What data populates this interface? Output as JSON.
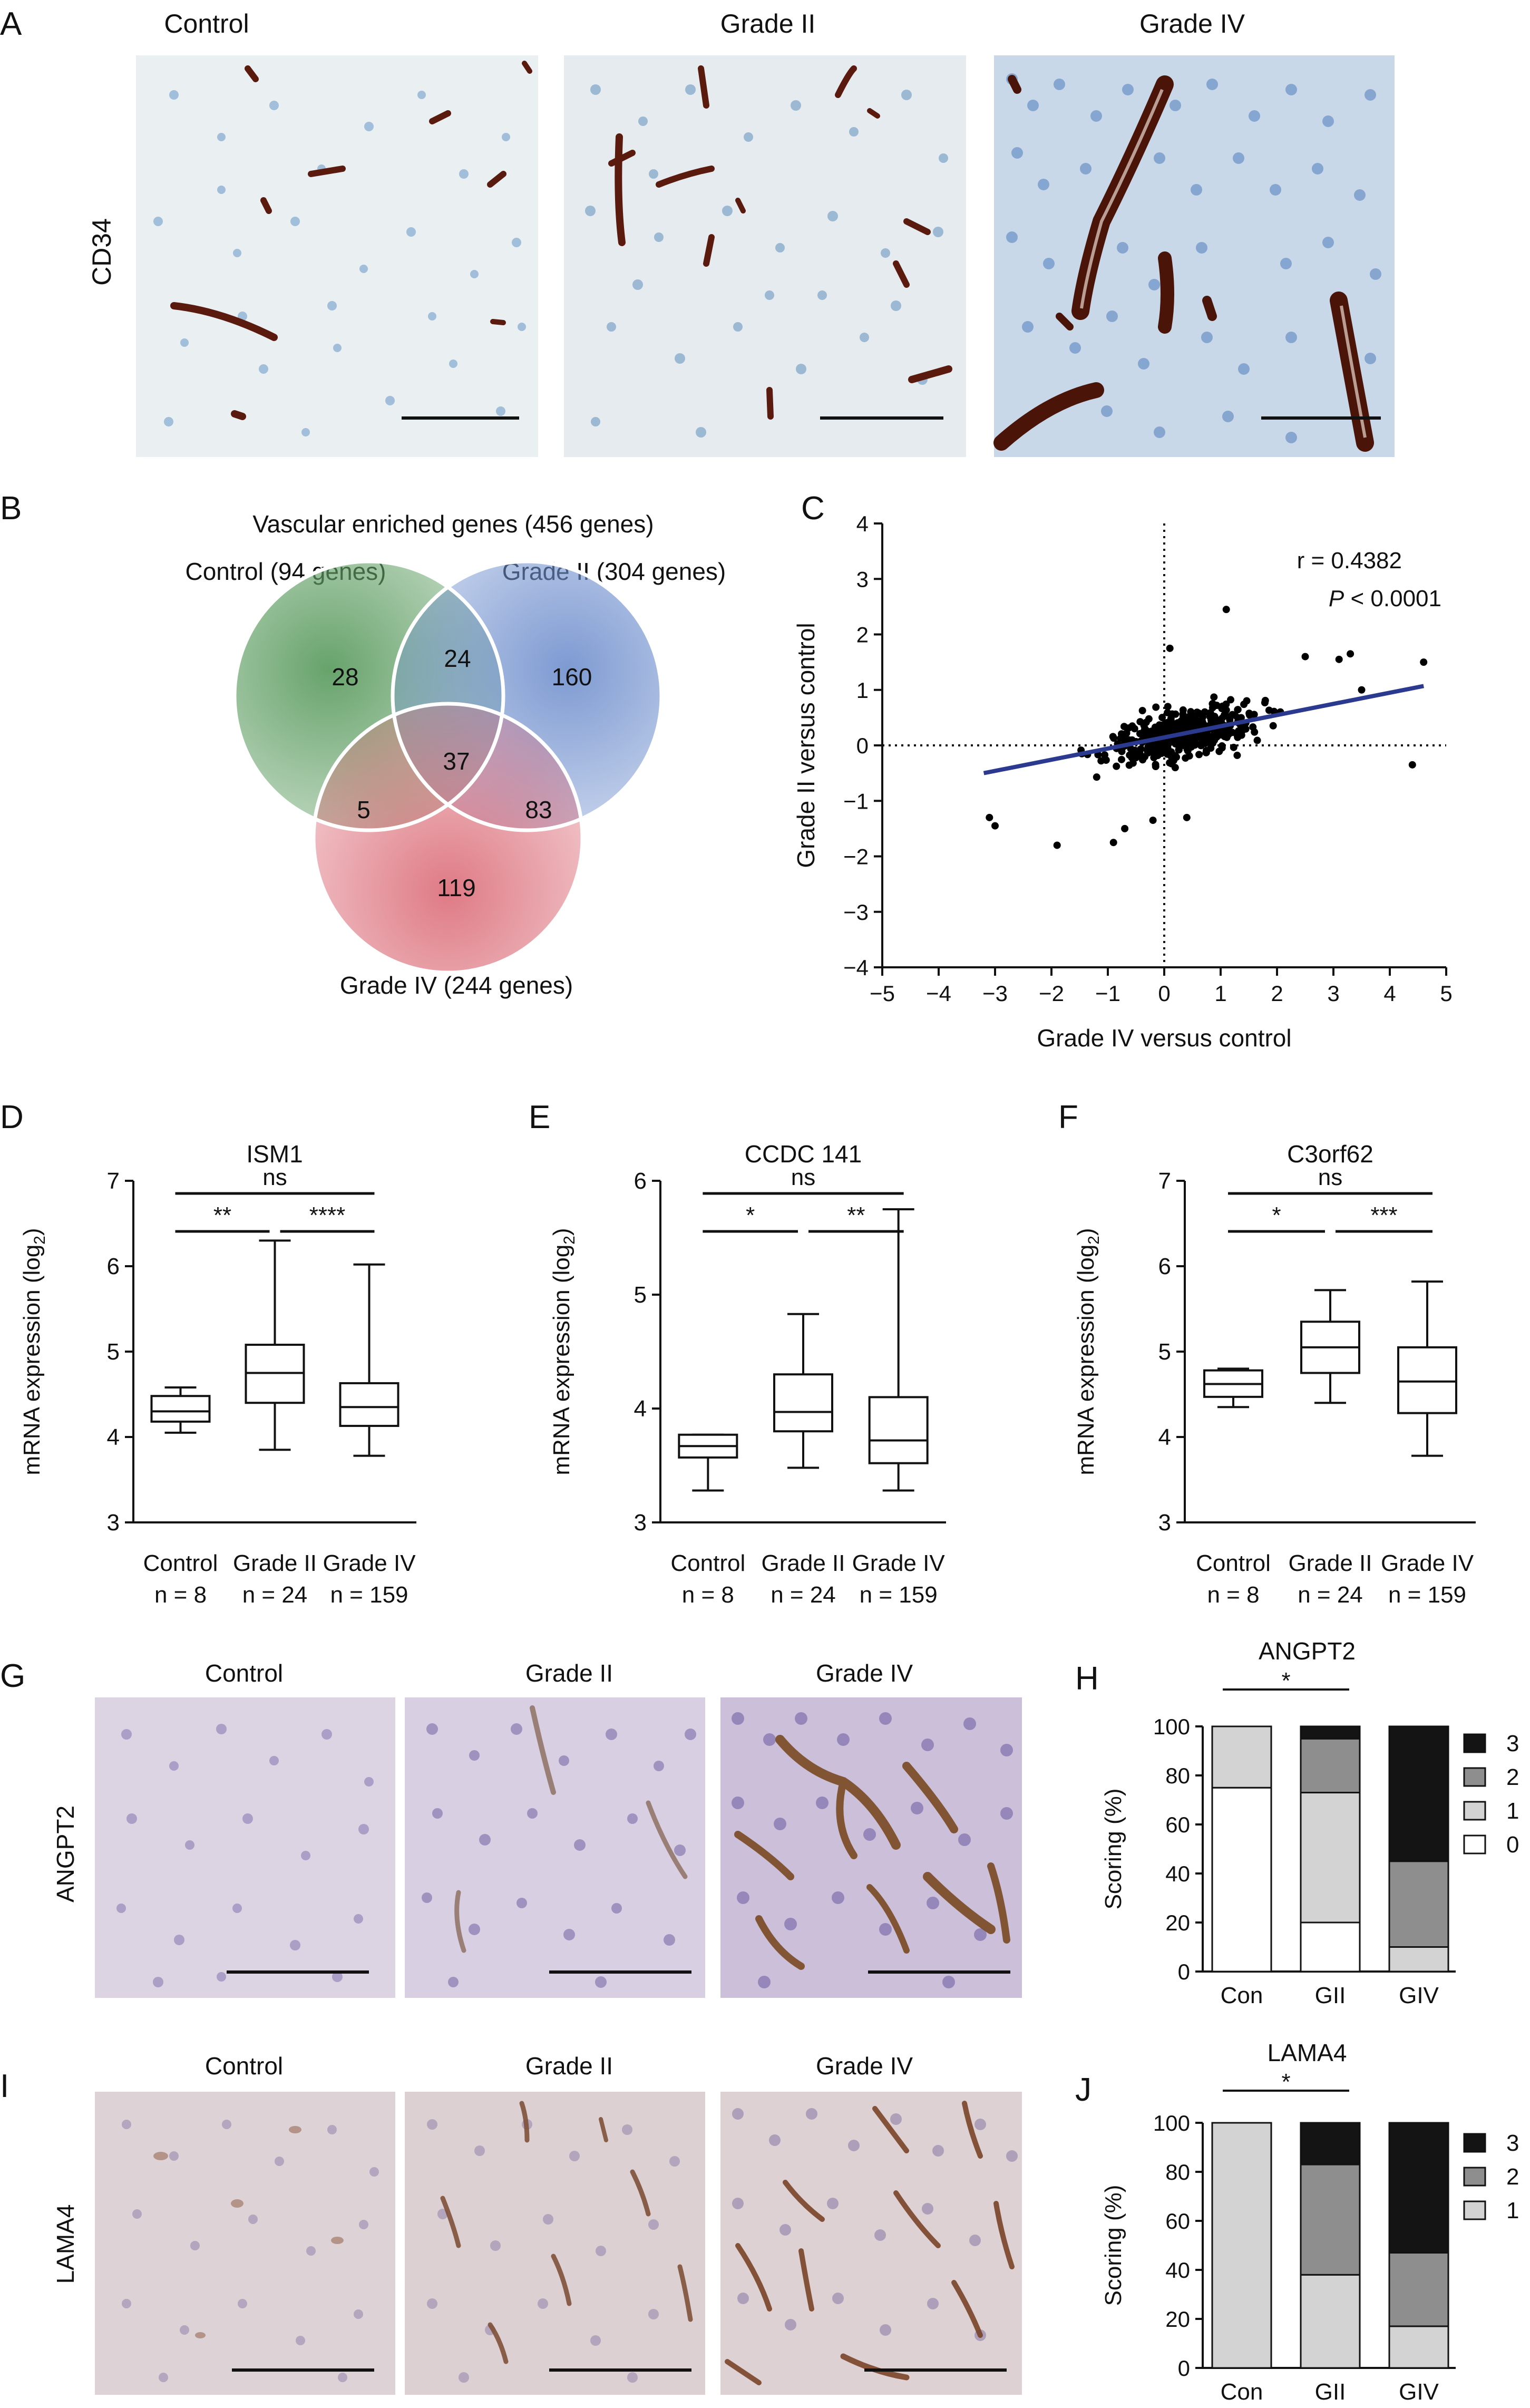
{
  "panel_labels": {
    "A": "A",
    "B": "B",
    "C": "C",
    "D": "D",
    "E": "E",
    "F": "F",
    "G": "G",
    "H": "H",
    "I": "I",
    "J": "J"
  },
  "panelA": {
    "columns": [
      "Control",
      "Grade II",
      "Grade IV"
    ],
    "row_label": "CD34",
    "colors": {
      "stain": "#5a1a0e",
      "nuclei": "#7fa6cf",
      "bg_control": "#e9eef1",
      "bg_grade2": "#e6ecef",
      "bg_grade4": "#c9d9e9"
    }
  },
  "panelB": {
    "title": "Vascular enriched genes (456 genes)",
    "set_labels": {
      "control": "Control (94 genes)",
      "grade2": "Grade II (304 genes)",
      "grade4": "Grade IV (244 genes)"
    },
    "region_counts": {
      "control_only": "28",
      "control_grade2": "24",
      "grade2_only": "160",
      "all": "37",
      "control_grade4": "5",
      "grade2_grade4": "83",
      "grade4_only": "119"
    },
    "colors": {
      "control": "#5f9e63",
      "grade2": "#6f8fcd",
      "grade4": "#d96470"
    }
  },
  "chart_data": [
    {
      "id": "C",
      "type": "scatter",
      "xlabel": "Grade IV versus control",
      "ylabel": "Grade II versus control",
      "xlim": [
        -5,
        5
      ],
      "ylim": [
        -4,
        4
      ],
      "xticks": [
        "−5",
        "−4",
        "−3",
        "−2",
        "−1",
        "0",
        "1",
        "2",
        "3",
        "4",
        "5"
      ],
      "yticks": [
        "−4",
        "−3",
        "−2",
        "−1",
        "0",
        "1",
        "2",
        "3",
        "4"
      ],
      "annotation_r": "r = 0.4382",
      "annotation_p_italic": "P",
      "annotation_p_rest": " < 0.0001",
      "regression": {
        "x": [
          -3.2,
          4.6
        ],
        "y": [
          -0.5,
          1.07
        ]
      },
      "regression_color": "#2b3a8f",
      "zero_lines": "dotted",
      "outliers": [
        [
          1.1,
          2.45
        ],
        [
          2.5,
          1.6
        ],
        [
          3.1,
          1.55
        ],
        [
          3.3,
          1.65
        ],
        [
          4.6,
          1.5
        ],
        [
          3.5,
          1.0
        ],
        [
          4.4,
          -0.35
        ],
        [
          -3.1,
          -1.3
        ],
        [
          -3.0,
          -1.45
        ],
        [
          -1.9,
          -1.8
        ],
        [
          -0.9,
          -1.75
        ],
        [
          -0.2,
          -1.35
        ],
        [
          0.1,
          1.75
        ],
        [
          -0.7,
          -1.5
        ],
        [
          0.4,
          -1.3
        ]
      ]
    },
    {
      "id": "D",
      "type": "box",
      "title": "ISM1",
      "ylabel": "mRNA expression (log₂)",
      "ylim": [
        3,
        7
      ],
      "yticks": [
        "3",
        "4",
        "5",
        "6",
        "7"
      ],
      "categories": [
        "Control",
        "Grade II",
        "Grade IV"
      ],
      "n_labels": [
        "n = 8",
        "n = 24",
        "n = 159"
      ],
      "boxes": [
        {
          "min": 4.05,
          "q1": 4.18,
          "median": 4.3,
          "q3": 4.48,
          "max": 4.58
        },
        {
          "min": 3.85,
          "q1": 4.4,
          "median": 4.75,
          "q3": 5.08,
          "max": 6.3
        },
        {
          "min": 3.78,
          "q1": 4.13,
          "median": 4.35,
          "q3": 4.63,
          "max": 6.02
        }
      ],
      "comparisons": [
        {
          "groups": [
            0,
            2
          ],
          "label": "ns",
          "level": 2
        },
        {
          "groups": [
            0,
            1
          ],
          "label": "**",
          "level": 1
        },
        {
          "groups": [
            1,
            2
          ],
          "label": "****",
          "level": 1
        }
      ]
    },
    {
      "id": "E",
      "type": "box",
      "title": "CCDC 141",
      "ylabel": "mRNA expression (log₂)",
      "ylim": [
        3,
        6
      ],
      "yticks": [
        "3",
        "4",
        "5",
        "6"
      ],
      "categories": [
        "Control",
        "Grade II",
        "Grade IV"
      ],
      "n_labels": [
        "n = 8",
        "n = 24",
        "n = 159"
      ],
      "boxes": [
        {
          "min": 3.28,
          "q1": 3.57,
          "median": 3.67,
          "q3": 3.77,
          "max": 3.77
        },
        {
          "min": 3.48,
          "q1": 3.8,
          "median": 3.97,
          "q3": 4.3,
          "max": 4.83
        },
        {
          "min": 3.28,
          "q1": 3.52,
          "median": 3.72,
          "q3": 4.1,
          "max": 5.75
        }
      ],
      "comparisons": [
        {
          "groups": [
            0,
            2
          ],
          "label": "ns",
          "level": 2
        },
        {
          "groups": [
            0,
            1
          ],
          "label": "*",
          "level": 1
        },
        {
          "groups": [
            1,
            2
          ],
          "label": "**",
          "level": 1
        }
      ]
    },
    {
      "id": "F",
      "type": "box",
      "title": "C3orf62",
      "ylabel": "mRNA expression (log₂)",
      "ylim": [
        3,
        7
      ],
      "yticks": [
        "3",
        "4",
        "5",
        "6",
        "7"
      ],
      "categories": [
        "Control",
        "Grade II",
        "Grade IV"
      ],
      "n_labels": [
        "n = 8",
        "n = 24",
        "n = 159"
      ],
      "boxes": [
        {
          "min": 4.35,
          "q1": 4.47,
          "median": 4.62,
          "q3": 4.78,
          "max": 4.8
        },
        {
          "min": 4.4,
          "q1": 4.75,
          "median": 5.05,
          "q3": 5.35,
          "max": 5.72
        },
        {
          "min": 3.78,
          "q1": 4.28,
          "median": 4.65,
          "q3": 5.05,
          "max": 5.82
        }
      ],
      "comparisons": [
        {
          "groups": [
            0,
            2
          ],
          "label": "ns",
          "level": 2
        },
        {
          "groups": [
            0,
            1
          ],
          "label": "*",
          "level": 1
        },
        {
          "groups": [
            1,
            2
          ],
          "label": "***",
          "level": 1
        }
      ]
    },
    {
      "id": "H",
      "type": "bar",
      "stacked": true,
      "title": "ANGPT2",
      "ylabel": "Scoring (%)",
      "ylim": [
        0,
        100
      ],
      "yticks": [
        "0",
        "20",
        "40",
        "60",
        "80",
        "100"
      ],
      "categories": [
        "Con",
        "GII",
        "GIV"
      ],
      "series": [
        {
          "name": "0",
          "color": "#ffffff",
          "values": [
            75,
            20,
            0
          ]
        },
        {
          "name": "1",
          "color": "#d3d3d3",
          "values": [
            25,
            53,
            10
          ]
        },
        {
          "name": "2",
          "color": "#8e8e8e",
          "values": [
            0,
            22,
            35
          ]
        },
        {
          "name": "3",
          "color": "#141414",
          "values": [
            0,
            5,
            55
          ]
        }
      ],
      "significance": {
        "label": "*",
        "groups": [
          0,
          1
        ]
      }
    },
    {
      "id": "J",
      "type": "bar",
      "stacked": true,
      "title": "LAMA4",
      "ylabel": "Scoring (%)",
      "ylim": [
        0,
        100
      ],
      "yticks": [
        "0",
        "20",
        "40",
        "60",
        "80",
        "100"
      ],
      "categories": [
        "Con",
        "GII",
        "GIV"
      ],
      "series": [
        {
          "name": "1",
          "color": "#d3d3d3",
          "values": [
            100,
            38,
            17
          ]
        },
        {
          "name": "2",
          "color": "#8e8e8e",
          "values": [
            0,
            45,
            30
          ]
        },
        {
          "name": "3",
          "color": "#141414",
          "values": [
            0,
            17,
            53
          ]
        }
      ],
      "significance": {
        "label": "*",
        "groups": [
          0,
          1
        ]
      }
    }
  ],
  "panelG": {
    "columns": [
      "Control",
      "Grade II",
      "Grade IV"
    ],
    "row_label": "ANGPT2",
    "colors": {
      "bg": "#dcd2e4",
      "nuclei": "#7b6aa8",
      "stain": "#7a4a22"
    }
  },
  "panelI": {
    "columns": [
      "Control",
      "Grade II",
      "Grade IV"
    ],
    "row_label": "LAMA4",
    "colors": {
      "bg": "#ddd1d5",
      "nuclei": "#8a7aa6",
      "stain": "#8c5a3c"
    }
  }
}
